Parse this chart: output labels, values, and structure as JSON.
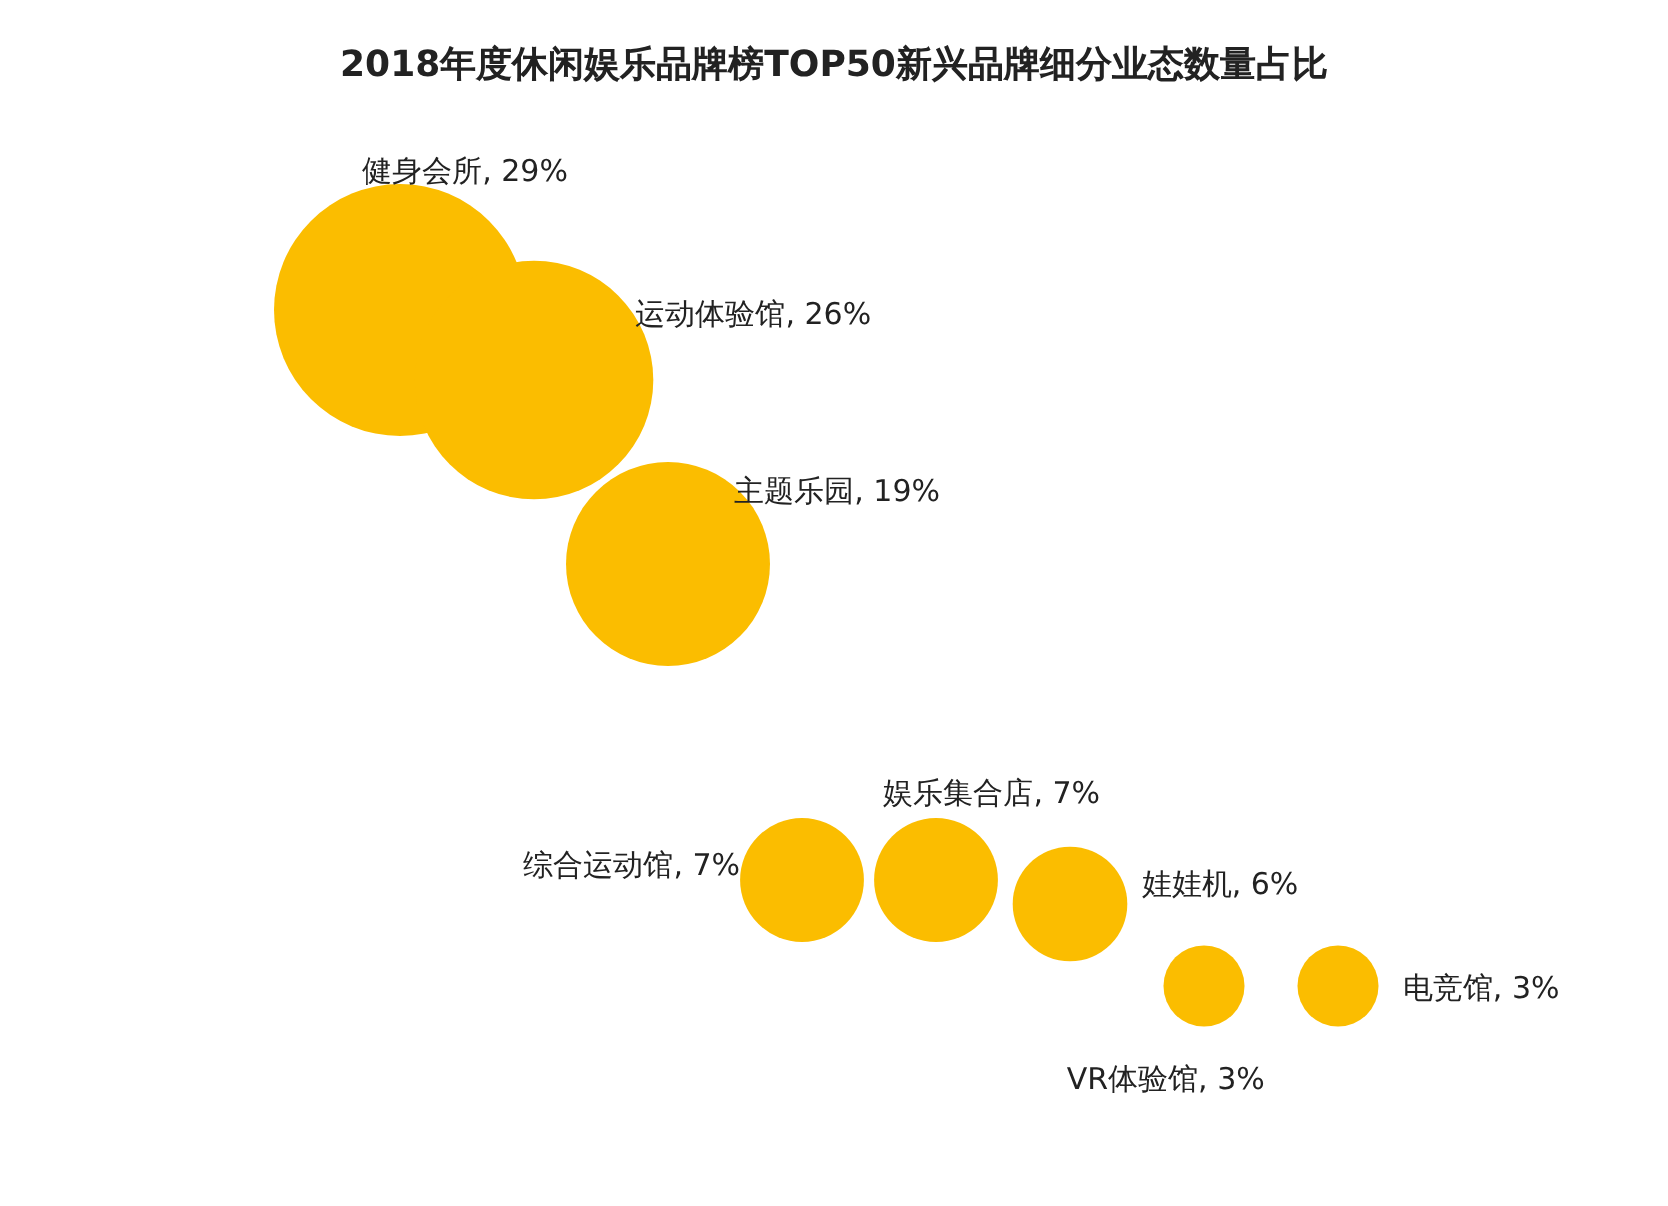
{
  "chart_data": {
    "type": "other",
    "title": "2018年度休闲娱乐品牌榜TOP50新兴品牌细分业态数量占比",
    "categories": [
      "健身会所",
      "运动体验馆",
      "主题乐园",
      "综合运动馆",
      "娱乐集合店",
      "娃娃机",
      "VR体验馆",
      "电竞馆"
    ],
    "value_labels": [
      ", 29%",
      ", 26%",
      ", 19%",
      ", 7%",
      ", 7%",
      ", 6%",
      ", 3%",
      ", 3%"
    ],
    "values": [
      29,
      26,
      19,
      7,
      7,
      6,
      3,
      3
    ],
    "color": "#fbbd00"
  }
}
